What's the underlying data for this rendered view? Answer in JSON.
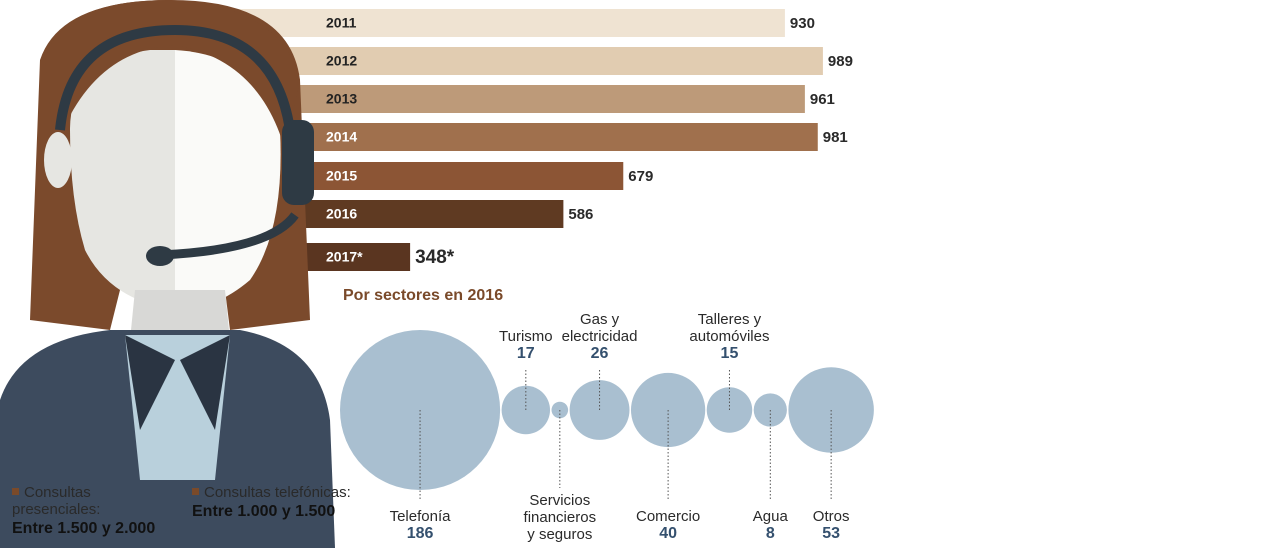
{
  "chart_data": [
    {
      "type": "bar",
      "categories": [
        "2011",
        "2012",
        "2013",
        "2014",
        "2015",
        "2016",
        "2017*"
      ],
      "values": [
        930,
        989,
        961,
        981,
        679,
        586,
        348
      ],
      "value_labels": [
        "930",
        "989",
        "961",
        "981",
        "679",
        "586",
        "348*"
      ],
      "colors": [
        "#efe3d2",
        "#e1ccb1",
        "#bd9a79",
        "#a0704d",
        "#8c5535",
        "#5f3a22",
        "#5a3520"
      ]
    },
    {
      "type": "bubble",
      "title": "Por sectores en 2016",
      "categories": [
        "Telefonía",
        "Turismo",
        "Servicios financieros y seguros",
        "Gas y electricidad",
        "Comercio",
        "Talleres y automóviles",
        "Agua",
        "Otros"
      ],
      "values": [
        186,
        17,
        2,
        26,
        40,
        15,
        8,
        53
      ],
      "value_labels": [
        "186",
        "17",
        null,
        "26",
        "40",
        "15",
        "8",
        "53"
      ],
      "color": "#a9bfd0"
    }
  ],
  "notes": [
    {
      "label": "Consultas presenciales:",
      "value": "Entre 1.500 y 2.000"
    },
    {
      "label": "Consultas telefónicas:",
      "value": "Entre 1.000 y 1.500"
    }
  ]
}
